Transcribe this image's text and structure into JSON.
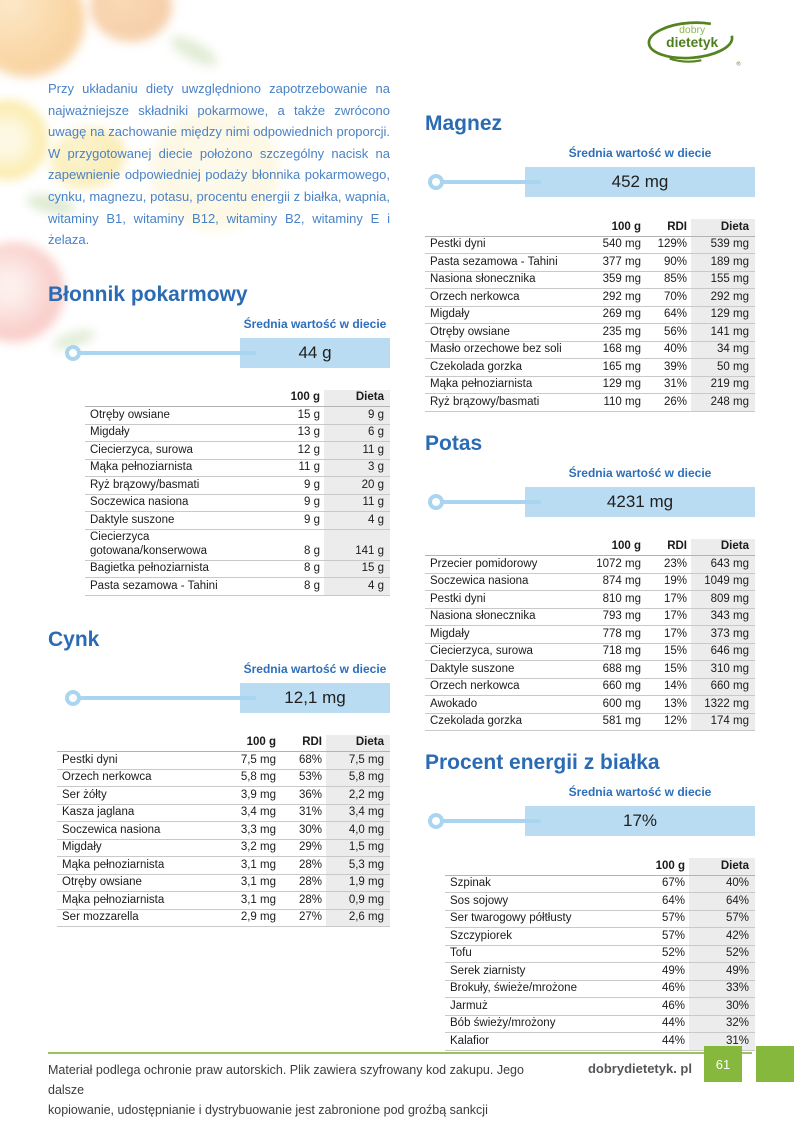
{
  "logo": {
    "line1": "dobry",
    "line2": "dietetyk",
    "registered": "®"
  },
  "colors": {
    "heading_blue": "#2a6bb4",
    "paragraph_blue": "#4a82c6",
    "bar_fill": "#b9dcf2",
    "slider_blue": "#a9d5f0",
    "dieta_column_bg": "#ececec",
    "footer_green": "#86b83e"
  },
  "intro": "Przy układaniu diety uwzględniono zapotrzebowanie na najważniejsze składniki pokarmowe, a także zwrócono uwagę na zachowanie między nimi odpowiednich proporcji. W przygotowanej diecie położono szczególny nacisk na zapewnienie odpowiedniej podaży błonnika pokarmowego, cynku, magnezu, potasu, procentu energii z białka, wapnia, witaminy B1, witaminy B12, witaminy B2, witaminy E i żelaza.",
  "sections": {
    "blonnik": {
      "title": "Błonnik pokarmowy",
      "meter_label": "Średnia wartość w diecie",
      "value": "44 g",
      "columns": [
        "",
        "100 g",
        "Dieta"
      ],
      "rows": [
        [
          "Otręby owsiane",
          "15 g",
          "9 g"
        ],
        [
          "Migdały",
          "13 g",
          "6 g"
        ],
        [
          "Ciecierzyca, surowa",
          "12 g",
          "11 g"
        ],
        [
          "Mąka pełnoziarnista",
          "11 g",
          "3 g"
        ],
        [
          "Ryż brązowy/basmati",
          "9 g",
          "20 g"
        ],
        [
          "Soczewica nasiona",
          "9 g",
          "11 g"
        ],
        [
          "Daktyle suszone",
          "9 g",
          "4 g"
        ],
        [
          "Ciecierzyca gotowana/konserwowa",
          "8 g",
          "141 g"
        ],
        [
          "Bagietka pełnoziarnista",
          "8 g",
          "15 g"
        ],
        [
          "Pasta sezamowa - Tahini",
          "8 g",
          "4 g"
        ]
      ]
    },
    "cynk": {
      "title": "Cynk",
      "meter_label": "Średnia wartość w diecie",
      "value": "12,1 mg",
      "columns": [
        "",
        "100 g",
        "RDI",
        "Dieta"
      ],
      "rows": [
        [
          "Pestki dyni",
          "7,5 mg",
          "68%",
          "7,5 mg"
        ],
        [
          "Orzech nerkowca",
          "5,8 mg",
          "53%",
          "5,8 mg"
        ],
        [
          "Ser żółty",
          "3,9 mg",
          "36%",
          "2,2 mg"
        ],
        [
          "Kasza jaglana",
          "3,4 mg",
          "31%",
          "3,4 mg"
        ],
        [
          "Soczewica nasiona",
          "3,3 mg",
          "30%",
          "4,0 mg"
        ],
        [
          "Migdały",
          "3,2 mg",
          "29%",
          "1,5 mg"
        ],
        [
          "Mąka pełnoziarnista",
          "3,1 mg",
          "28%",
          "5,3 mg"
        ],
        [
          "Otręby owsiane",
          "3,1 mg",
          "28%",
          "1,9 mg"
        ],
        [
          "Mąka pełnoziarnista",
          "3,1 mg",
          "28%",
          "0,9 mg"
        ],
        [
          "Ser mozzarella",
          "2,9 mg",
          "27%",
          "2,6 mg"
        ]
      ]
    },
    "magnez": {
      "title": "Magnez",
      "meter_label": "Średnia wartość w diecie",
      "value": "452 mg",
      "columns": [
        "",
        "100 g",
        "RDI",
        "Dieta"
      ],
      "rows": [
        [
          "Pestki dyni",
          "540 mg",
          "129%",
          "539 mg"
        ],
        [
          "Pasta sezamowa - Tahini",
          "377 mg",
          "90%",
          "189 mg"
        ],
        [
          "Nasiona słonecznika",
          "359 mg",
          "85%",
          "155 mg"
        ],
        [
          "Orzech nerkowca",
          "292 mg",
          "70%",
          "292 mg"
        ],
        [
          "Migdały",
          "269 mg",
          "64%",
          "129 mg"
        ],
        [
          "Otręby owsiane",
          "235 mg",
          "56%",
          "141 mg"
        ],
        [
          "Masło orzechowe bez soli",
          "168 mg",
          "40%",
          "34 mg"
        ],
        [
          "Czekolada gorzka",
          "165 mg",
          "39%",
          "50 mg"
        ],
        [
          "Mąka pełnoziarnista",
          "129 mg",
          "31%",
          "219 mg"
        ],
        [
          "Ryż brązowy/basmati",
          "110 mg",
          "26%",
          "248 mg"
        ]
      ]
    },
    "potas": {
      "title": "Potas",
      "meter_label": "Średnia wartość w diecie",
      "value": "4231 mg",
      "columns": [
        "",
        "100 g",
        "RDI",
        "Dieta"
      ],
      "rows": [
        [
          "Przecier pomidorowy",
          "1072 mg",
          "23%",
          "643 mg"
        ],
        [
          "Soczewica nasiona",
          "874 mg",
          "19%",
          "1049 mg"
        ],
        [
          "Pestki dyni",
          "810 mg",
          "17%",
          "809 mg"
        ],
        [
          "Nasiona słonecznika",
          "793 mg",
          "17%",
          "343 mg"
        ],
        [
          "Migdały",
          "778 mg",
          "17%",
          "373 mg"
        ],
        [
          "Ciecierzyca, surowa",
          "718 mg",
          "15%",
          "646 mg"
        ],
        [
          "Daktyle suszone",
          "688 mg",
          "15%",
          "310 mg"
        ],
        [
          "Orzech nerkowca",
          "660 mg",
          "14%",
          "660 mg"
        ],
        [
          "Awokado",
          "600 mg",
          "13%",
          "1322 mg"
        ],
        [
          "Czekolada gorzka",
          "581 mg",
          "12%",
          "174 mg"
        ]
      ]
    },
    "procent": {
      "title": "Procent energii z białka",
      "meter_label": "Średnia wartość w diecie",
      "value": "17%",
      "columns": [
        "",
        "100 g",
        "Dieta"
      ],
      "rows": [
        [
          "Szpinak",
          "67%",
          "40%"
        ],
        [
          "Sos sojowy",
          "64%",
          "64%"
        ],
        [
          "Ser twarogowy półtłusty",
          "57%",
          "57%"
        ],
        [
          "Szczypiorek",
          "57%",
          "42%"
        ],
        [
          "Tofu",
          "52%",
          "52%"
        ],
        [
          "Serek ziarnisty",
          "49%",
          "49%"
        ],
        [
          "Brokuły, świeże/mrożone",
          "46%",
          "33%"
        ],
        [
          "Jarmuż",
          "46%",
          "30%"
        ],
        [
          "Bób świeży/mrożony",
          "44%",
          "32%"
        ],
        [
          "Kalafior",
          "44%",
          "31%"
        ]
      ]
    }
  },
  "footer": {
    "line1": "Materiał podlega ochronie praw autorskich. Plik zawiera szyfrowany kod zakupu. Jego dalsze",
    "line2": "kopiowanie, udostępnianie i dystrybuowanie jest zabronione pod groźbą sankcji prawnych.",
    "site": "dobrydietetyk. pl",
    "page_number": "61"
  }
}
